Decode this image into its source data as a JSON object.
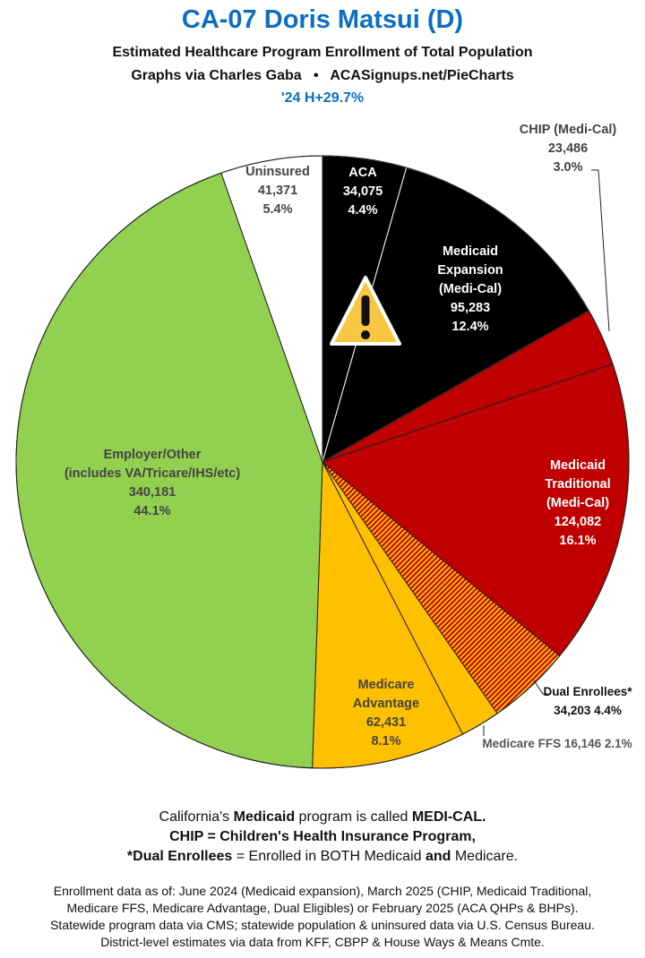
{
  "header": {
    "title": "CA-07 Doris Matsui (D)",
    "subtitle": "Estimated Healthcare Program Enrollment of Total Population",
    "credit": "Graphs via Charles Gaba   •   ACASignups.net/PieCharts",
    "pvi": "'24 H+29.7%"
  },
  "chart_data": {
    "type": "pie",
    "title": "CA-07 Doris Matsui (D)",
    "start": "top",
    "direction": "clockwise",
    "slices": [
      {
        "label": "ACA",
        "value": 34075,
        "percent": 4.4,
        "color": "#000000",
        "text_lines": [
          "ACA",
          "34,075",
          "4.4%"
        ]
      },
      {
        "label": "Medicaid Expansion (Medi-Cal)",
        "value": 95283,
        "percent": 12.4,
        "color": "#000000",
        "text_lines": [
          "Medicaid",
          "Expansion",
          "(Medi-Cal)",
          "95,283",
          "12.4%"
        ]
      },
      {
        "label": "CHIP (Medi-Cal)",
        "value": 23486,
        "percent": 3.0,
        "color": "#c00000",
        "text_lines": [
          "CHIP (Medi-Cal)",
          "23,486",
          "3.0%"
        ]
      },
      {
        "label": "Medicaid Traditional (Medi-Cal)",
        "value": 124082,
        "percent": 16.1,
        "color": "#c00000",
        "text_lines": [
          "Medicaid",
          "Traditional",
          "(Medi-Cal)",
          "124,082",
          "16.1%"
        ]
      },
      {
        "label": "Dual Enrollees*",
        "value": 34203,
        "percent": 4.4,
        "color": "#c00000",
        "pattern": "red-yellow-hatch",
        "text_lines": [
          "Dual Enrollees*",
          "34,203 4.4%"
        ]
      },
      {
        "label": "Medicare FFS",
        "value": 16146,
        "percent": 2.1,
        "color": "#ffc000",
        "text_lines": [
          "Medicare FFS 16,146 2.1%"
        ]
      },
      {
        "label": "Medicare Advantage",
        "value": 62431,
        "percent": 8.1,
        "color": "#ffc000",
        "text_lines": [
          "Medicare",
          "Advantage",
          "62,431",
          "8.1%"
        ]
      },
      {
        "label": "Employer/Other (includes VA/Tricare/IHS/etc)",
        "value": 340181,
        "percent": 44.1,
        "color": "#92d050",
        "text_lines": [
          "Employer/Other",
          "(includes VA/Tricare/IHS/etc)",
          "340,181",
          "44.1%"
        ]
      },
      {
        "label": "Uninsured",
        "value": 41371,
        "percent": 5.4,
        "color": "#ffffff",
        "text_lines": [
          "Uninsured",
          "41,371",
          "5.4%"
        ]
      }
    ],
    "annotation_icon": "warning-triangle-icon"
  },
  "notes": {
    "line1_a": "California's ",
    "line1_b": "Medicaid",
    "line1_c": " program is called ",
    "line1_d": "MEDI-CAL.",
    "line2": "CHIP = Children's Health Insurance Program,",
    "line3_a": "*Dual Enrollees",
    "line3_b": " = Enrolled in BOTH Medicaid ",
    "line3_c": "and",
    "line3_d": " Medicare."
  },
  "sources": [
    "Enrollment data as of: June 2024 (Medicaid expansion), March 2025 (CHIP, Medicaid Traditional,",
    "Medicare FFS, Medicare Advantage, Dual Eligibles) or February 2025 (ACA QHPs & BHPs).",
    "Statewide program data via CMS; statewide population & uninsured data via U.S. Census Bureau.",
    "District-level estimates via data from KFF, CBPP & House Ways & Means Cmte."
  ]
}
